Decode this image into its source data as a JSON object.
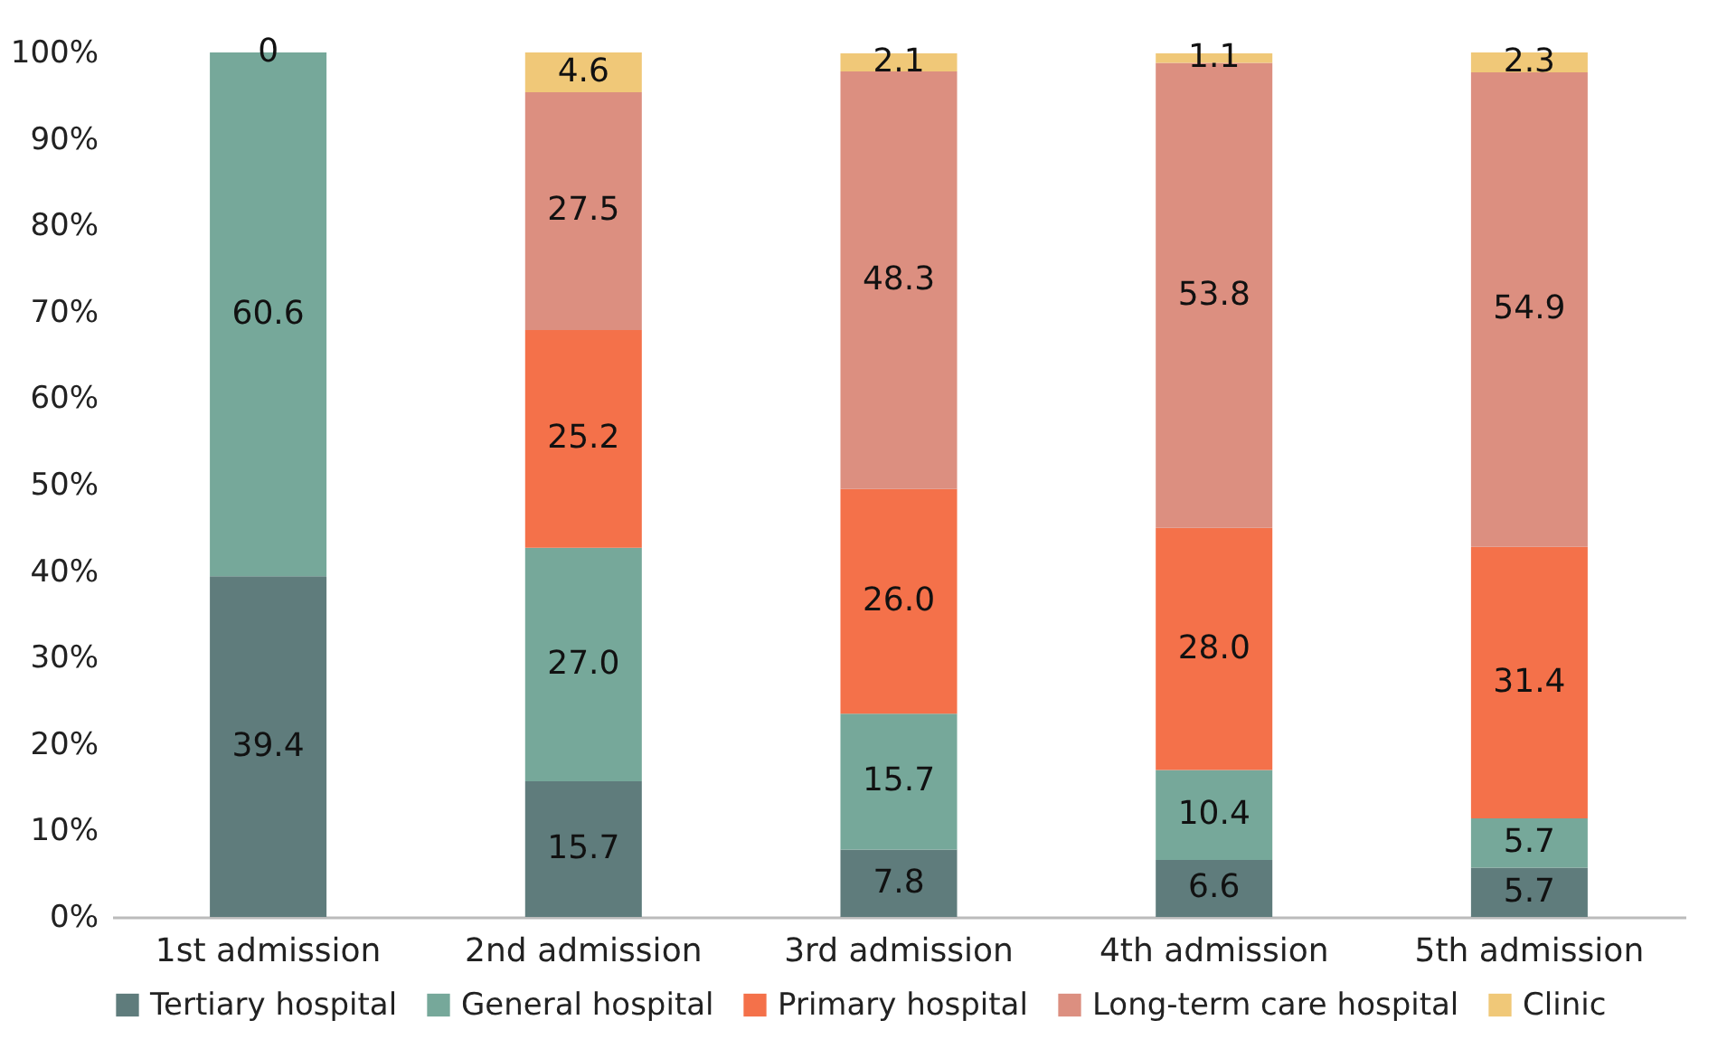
{
  "chart_data": {
    "type": "bar",
    "stacked": true,
    "categories": [
      "1st admission",
      "2nd admission",
      "3rd admission",
      "4th admission",
      "5th admission"
    ],
    "series": [
      {
        "name": "Tertiary hospital",
        "color": "#5f7c7c",
        "values": [
          39.4,
          15.7,
          7.8,
          6.6,
          5.7
        ],
        "value_labels": [
          "39.4",
          "15.7",
          "7.8",
          "6.6",
          "5.7"
        ]
      },
      {
        "name": "General hospital",
        "color": "#76a89a",
        "values": [
          60.6,
          27.0,
          15.7,
          10.4,
          5.7
        ],
        "value_labels": [
          "60.6",
          "27.0",
          "15.7",
          "10.4",
          "5.7"
        ]
      },
      {
        "name": "Primary hospital",
        "color": "#f4714a",
        "values": [
          null,
          25.2,
          26.0,
          28.0,
          31.4
        ],
        "value_labels": [
          null,
          "25.2",
          "26.0",
          "28.0",
          "31.4"
        ]
      },
      {
        "name": "Long-term care hospital",
        "color": "#dc8f80",
        "values": [
          null,
          27.5,
          48.3,
          53.8,
          54.9
        ],
        "value_labels": [
          null,
          "27.5",
          "48.3",
          "53.8",
          "54.9"
        ]
      },
      {
        "name": "Clinic",
        "color": "#f0c878",
        "values": [
          0,
          4.6,
          2.1,
          1.1,
          2.3
        ],
        "value_labels": [
          "0",
          "4.6",
          "2.1",
          "1.1",
          "2.3"
        ]
      }
    ],
    "ylim": [
      0,
      100
    ],
    "yticks": [
      {
        "value": 0,
        "label": "0%"
      },
      {
        "value": 10,
        "label": "10%"
      },
      {
        "value": 20,
        "label": "20%"
      },
      {
        "value": 30,
        "label": "30%"
      },
      {
        "value": 40,
        "label": "40%"
      },
      {
        "value": 50,
        "label": "50%"
      },
      {
        "value": 60,
        "label": "60%"
      },
      {
        "value": 70,
        "label": "70%"
      },
      {
        "value": 80,
        "label": "80%"
      },
      {
        "value": 90,
        "label": "90%"
      },
      {
        "value": 100,
        "label": "100%"
      }
    ],
    "grid": false,
    "legend": "bottom"
  }
}
